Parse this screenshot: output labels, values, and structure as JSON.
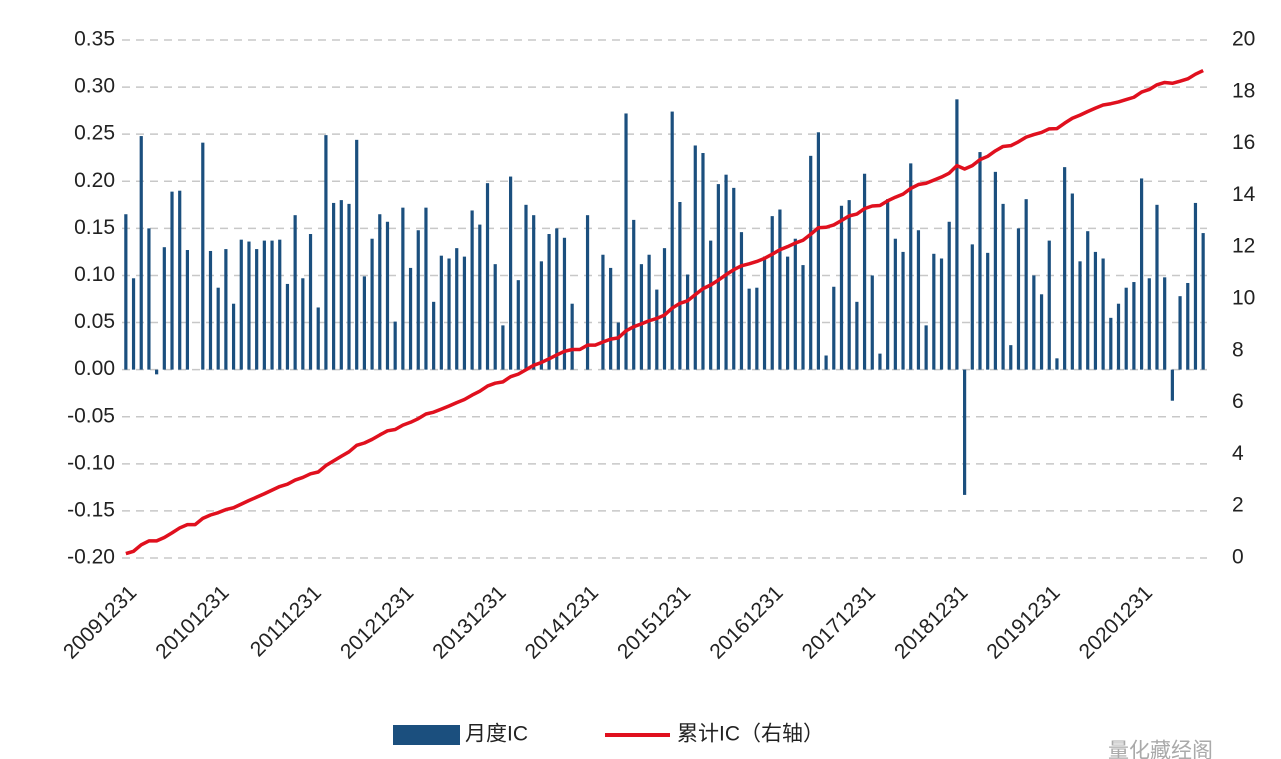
{
  "chart_data": {
    "type": "bar",
    "categories": [
      "20091231",
      null,
      null,
      null,
      null,
      null,
      null,
      null,
      null,
      null,
      null,
      null,
      "20101231",
      null,
      null,
      null,
      null,
      null,
      null,
      null,
      null,
      null,
      null,
      null,
      "20111231",
      null,
      null,
      null,
      null,
      null,
      null,
      null,
      null,
      null,
      null,
      null,
      "20121231",
      null,
      null,
      null,
      null,
      null,
      null,
      null,
      null,
      null,
      null,
      null,
      "20131231",
      null,
      null,
      null,
      null,
      null,
      null,
      null,
      null,
      null,
      null,
      null,
      "20141231",
      null,
      null,
      null,
      null,
      null,
      null,
      null,
      null,
      null,
      null,
      null,
      "20151231",
      null,
      null,
      null,
      null,
      null,
      null,
      null,
      null,
      null,
      null,
      null,
      "20161231",
      null,
      null,
      null,
      null,
      null,
      null,
      null,
      null,
      null,
      null,
      null,
      "20171231",
      null,
      null,
      null,
      null,
      null,
      null,
      null,
      null,
      null,
      null,
      null,
      "20181231",
      null,
      null,
      null,
      null,
      null,
      null,
      null,
      null,
      null,
      null,
      null,
      "20191231",
      null,
      null,
      null,
      null,
      null,
      null,
      null,
      null,
      null,
      null,
      null,
      "20201231",
      null,
      null,
      null,
      null,
      null,
      null,
      null,
      null
    ],
    "series": [
      {
        "name": "月度IC",
        "type": "bar",
        "color": "#1b4f7e",
        "values": [
          0.165,
          0.097,
          0.248,
          0.15,
          -0.005,
          0.13,
          0.189,
          0.19,
          0.127,
          0,
          0.241,
          0.126,
          0.087,
          0.128,
          0.07,
          0.138,
          0.136,
          0.128,
          0.137,
          0.137,
          0.138,
          0.091,
          0.164,
          0.097,
          0.144,
          0.066,
          0.249,
          0.177,
          0.18,
          0.176,
          0.244,
          0.099,
          0.139,
          0.165,
          0.157,
          0.051,
          0.172,
          0.108,
          0.148,
          0.172,
          0.072,
          0.121,
          0.118,
          0.129,
          0.12,
          0.169,
          0.154,
          0.198,
          0.112,
          0.047,
          0.205,
          0.095,
          0.175,
          0.164,
          0.115,
          0.144,
          0.15,
          0.14,
          0.07,
          0,
          0.164,
          0,
          0.122,
          0.108,
          0.05,
          0.272,
          0.159,
          0.112,
          0.122,
          0.085,
          0.129,
          0.274,
          0.178,
          0.101,
          0.238,
          0.23,
          0.137,
          0.197,
          0.207,
          0.193,
          0.146,
          0.086,
          0.087,
          0.12,
          0.163,
          0.17,
          0.12,
          0.139,
          0.111,
          0.227,
          0.252,
          0.015,
          0.088,
          0.174,
          0.18,
          0.072,
          0.208,
          0.1,
          0.017,
          0.181,
          0.139,
          0.125,
          0.219,
          0.148,
          0.047,
          0.123,
          0.118,
          0.157,
          0.287,
          -0.133,
          0.133,
          0.231,
          0.124,
          0.21,
          0.176,
          0.026,
          0.15,
          0.181,
          0.1,
          0.08,
          0.137,
          0.012,
          0.215,
          0.187,
          0.115,
          0.147,
          0.125,
          0.118,
          0.055,
          0.07,
          0.087,
          0.093,
          0.203,
          0.097,
          0.175,
          0.098,
          -0.033,
          0.078,
          0.092,
          0.177,
          0.145
        ]
      },
      {
        "name": "累计IC（右轴）",
        "type": "line",
        "axis": "y2",
        "color": "#e0101e",
        "values": [
          0.17,
          0.26,
          0.51,
          0.66,
          0.66,
          0.79,
          0.97,
          1.16,
          1.29,
          1.29,
          1.53,
          1.66,
          1.75,
          1.87,
          1.94,
          2.08,
          2.22,
          2.35,
          2.48,
          2.62,
          2.76,
          2.85,
          3.01,
          3.11,
          3.25,
          3.32,
          3.57,
          3.75,
          3.93,
          4.1,
          4.35,
          4.44,
          4.58,
          4.75,
          4.91,
          4.96,
          5.13,
          5.24,
          5.38,
          5.56,
          5.63,
          5.75,
          5.87,
          6.0,
          6.12,
          6.29,
          6.44,
          6.64,
          6.75,
          6.8,
          7.0,
          7.1,
          7.27,
          7.44,
          7.55,
          7.69,
          7.84,
          7.98,
          8.05,
          8.05,
          8.22,
          8.22,
          8.34,
          8.45,
          8.5,
          8.77,
          8.93,
          9.04,
          9.16,
          9.25,
          9.38,
          9.65,
          9.83,
          9.93,
          10.17,
          10.4,
          10.54,
          10.73,
          10.94,
          11.13,
          11.28,
          11.36,
          11.45,
          11.57,
          11.73,
          11.9,
          12.02,
          12.16,
          12.27,
          12.5,
          12.75,
          12.77,
          12.86,
          13.03,
          13.21,
          13.28,
          13.49,
          13.59,
          13.61,
          13.79,
          13.93,
          14.05,
          14.27,
          14.42,
          14.47,
          14.59,
          14.71,
          14.86,
          15.15,
          15.02,
          15.15,
          15.38,
          15.51,
          15.72,
          15.89,
          15.92,
          16.07,
          16.25,
          16.35,
          16.43,
          16.57,
          16.58,
          16.79,
          16.98,
          17.1,
          17.24,
          17.37,
          17.49,
          17.54,
          17.61,
          17.7,
          17.79,
          17.99,
          18.09,
          18.27,
          18.36,
          18.33,
          18.41,
          18.5,
          18.68,
          18.82
        ]
      }
    ],
    "ylim": [
      -0.2,
      0.35
    ],
    "yticks": [
      {
        "value": -0.2,
        "label": "-0.20"
      },
      {
        "value": -0.15,
        "label": "-0.15"
      },
      {
        "value": -0.1,
        "label": "-0.10"
      },
      {
        "value": -0.05,
        "label": "-0.05"
      },
      {
        "value": 0,
        "label": "0.00"
      },
      {
        "value": 0.05,
        "label": "0.05"
      },
      {
        "value": 0.1,
        "label": "0.10"
      },
      {
        "value": 0.15,
        "label": "0.15"
      },
      {
        "value": 0.2,
        "label": "0.20"
      },
      {
        "value": 0.25,
        "label": "0.25"
      },
      {
        "value": 0.3,
        "label": "0.30"
      },
      {
        "value": 0.35,
        "label": "0.35"
      }
    ],
    "y2lim": [
      0,
      20
    ],
    "y2ticks": [
      0,
      2,
      4,
      6,
      8,
      10,
      12,
      14,
      16,
      18,
      20
    ],
    "grid": true,
    "legend": "bottom",
    "watermark": "量化藏经阁"
  }
}
